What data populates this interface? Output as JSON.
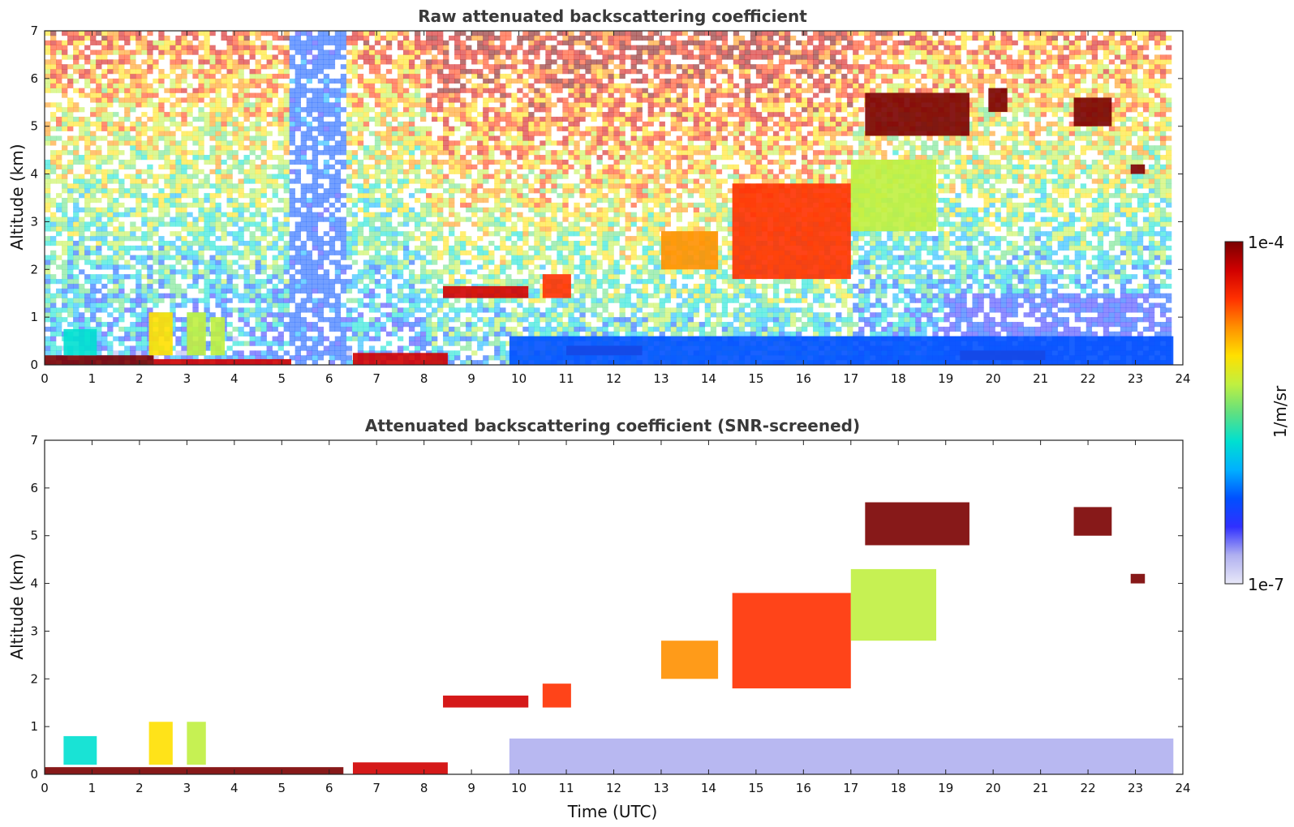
{
  "chart_data": [
    {
      "type": "heatmap",
      "title": "Raw attenuated backscattering coefficient",
      "xlabel": "",
      "ylabel": "Altitude (km)",
      "xlim": [
        0,
        24
      ],
      "ylim": [
        0,
        7
      ],
      "xticks": [
        "0",
        "1",
        "2",
        "3",
        "4",
        "5",
        "6",
        "7",
        "8",
        "9",
        "10",
        "11",
        "12",
        "13",
        "14",
        "15",
        "16",
        "17",
        "18",
        "19",
        "20",
        "21",
        "22",
        "23",
        "24"
      ],
      "yticks": [
        "0",
        "1",
        "2",
        "3",
        "4",
        "5",
        "6",
        "7"
      ],
      "features": [
        {
          "t0": 0.0,
          "t1": 2.3,
          "z0": 0.0,
          "z1": 0.2,
          "level": 0.97
        },
        {
          "t0": 2.3,
          "t1": 5.2,
          "z0": 0.0,
          "z1": 0.12,
          "level": 0.95
        },
        {
          "t0": 6.5,
          "t1": 8.5,
          "z0": 0.0,
          "z1": 0.25,
          "level": 0.95
        },
        {
          "t0": 0.4,
          "t1": 1.1,
          "z0": 0.2,
          "z1": 0.75,
          "level": 0.45
        },
        {
          "t0": 2.2,
          "t1": 2.7,
          "z0": 0.2,
          "z1": 1.1,
          "level": 0.65
        },
        {
          "t0": 3.0,
          "t1": 3.4,
          "z0": 0.2,
          "z1": 1.1,
          "level": 0.6
        },
        {
          "t0": 3.5,
          "t1": 3.8,
          "z0": 0.2,
          "z1": 1.0,
          "level": 0.55
        },
        {
          "t0": 8.4,
          "t1": 10.2,
          "z0": 1.4,
          "z1": 1.65,
          "level": 0.95
        },
        {
          "t0": 10.5,
          "t1": 11.1,
          "z0": 1.4,
          "z1": 1.9,
          "level": 0.85
        },
        {
          "t0": 11.0,
          "t1": 12.6,
          "z0": 0.2,
          "z1": 0.4,
          "level": 0.88
        },
        {
          "t0": 13.0,
          "t1": 14.2,
          "z0": 2.0,
          "z1": 2.8,
          "level": 0.78
        },
        {
          "t0": 14.5,
          "t1": 17.0,
          "z0": 1.8,
          "z1": 3.8,
          "level": 0.82
        },
        {
          "t0": 17.0,
          "t1": 18.8,
          "z0": 2.8,
          "z1": 4.3,
          "level": 0.62
        },
        {
          "t0": 17.3,
          "t1": 19.5,
          "z0": 4.8,
          "z1": 5.7,
          "level": 0.96
        },
        {
          "t0": 19.9,
          "t1": 20.3,
          "z0": 5.3,
          "z1": 5.8,
          "level": 0.96
        },
        {
          "t0": 21.7,
          "t1": 22.5,
          "z0": 5.0,
          "z1": 5.6,
          "level": 0.96
        },
        {
          "t0": 22.9,
          "t1": 23.2,
          "z0": 4.0,
          "z1": 4.2,
          "level": 0.97
        },
        {
          "t0": 19.3,
          "t1": 21.1,
          "z0": 0.1,
          "z1": 0.3,
          "level": 0.92
        },
        {
          "t0": 9.8,
          "t1": 23.8,
          "z0": 0.0,
          "z1": 0.6,
          "level": 0.22
        }
      ]
    },
    {
      "type": "heatmap",
      "title": "Attenuated backscattering coefficient (SNR-screened)",
      "xlabel": "Time (UTC)",
      "ylabel": "Altitude (km)",
      "xlim": [
        0,
        24
      ],
      "ylim": [
        0,
        7
      ],
      "xticks": [
        "0",
        "1",
        "2",
        "3",
        "4",
        "5",
        "6",
        "7",
        "8",
        "9",
        "10",
        "11",
        "12",
        "13",
        "14",
        "15",
        "16",
        "17",
        "18",
        "19",
        "20",
        "21",
        "22",
        "23",
        "24"
      ],
      "yticks": [
        "0",
        "1",
        "2",
        "3",
        "4",
        "5",
        "6",
        "7"
      ],
      "features": [
        {
          "t0": 0.0,
          "t1": 6.3,
          "z0": 0.0,
          "z1": 0.15,
          "level": 0.96
        },
        {
          "t0": 6.5,
          "t1": 8.5,
          "z0": 0.0,
          "z1": 0.25,
          "level": 0.95
        },
        {
          "t0": 0.4,
          "t1": 1.1,
          "z0": 0.2,
          "z1": 0.8,
          "level": 0.45
        },
        {
          "t0": 2.2,
          "t1": 2.7,
          "z0": 0.2,
          "z1": 1.1,
          "level": 0.65
        },
        {
          "t0": 3.0,
          "t1": 3.4,
          "z0": 0.2,
          "z1": 1.1,
          "level": 0.6
        },
        {
          "t0": 8.4,
          "t1": 10.2,
          "z0": 1.4,
          "z1": 1.65,
          "level": 0.95
        },
        {
          "t0": 10.5,
          "t1": 11.1,
          "z0": 1.4,
          "z1": 1.9,
          "level": 0.85
        },
        {
          "t0": 13.0,
          "t1": 14.2,
          "z0": 2.0,
          "z1": 2.8,
          "level": 0.78
        },
        {
          "t0": 14.5,
          "t1": 17.0,
          "z0": 1.8,
          "z1": 3.8,
          "level": 0.82
        },
        {
          "t0": 17.0,
          "t1": 18.8,
          "z0": 2.8,
          "z1": 4.3,
          "level": 0.62
        },
        {
          "t0": 17.3,
          "t1": 19.5,
          "z0": 4.8,
          "z1": 5.7,
          "level": 0.96
        },
        {
          "t0": 21.7,
          "t1": 22.5,
          "z0": 5.0,
          "z1": 5.6,
          "level": 0.96
        },
        {
          "t0": 22.9,
          "t1": 23.2,
          "z0": 4.0,
          "z1": 4.2,
          "level": 0.97
        },
        {
          "t0": 9.8,
          "t1": 23.8,
          "z0": 0.0,
          "z1": 0.75,
          "level": 0.12
        }
      ]
    }
  ],
  "colorbar": {
    "label": "1/m/sr",
    "max_label": "1e-4",
    "min_label": "1e-7",
    "stops": [
      "#e8e8f8",
      "#b0b0f0",
      "#3030ff",
      "#0050ff",
      "#00b0ff",
      "#00e0d0",
      "#60e080",
      "#c0f040",
      "#ffe000",
      "#ff9000",
      "#ff3000",
      "#d00000",
      "#7a0000"
    ]
  }
}
